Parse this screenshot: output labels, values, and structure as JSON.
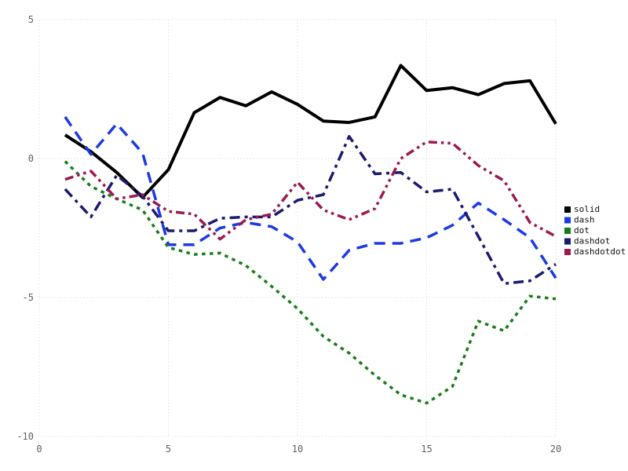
{
  "chart_data": {
    "type": "line",
    "title": "",
    "xlabel": "",
    "ylabel": "",
    "xlim": [
      0,
      20
    ],
    "ylim": [
      -10,
      5
    ],
    "xticks": [
      0,
      5,
      10,
      15,
      20
    ],
    "yticks": [
      5,
      0,
      -5,
      -10
    ],
    "grid": "dotted-lightgray",
    "legend_position": "right-outside-middle",
    "x": [
      1,
      2,
      3,
      4,
      5,
      6,
      7,
      8,
      9,
      10,
      11,
      12,
      13,
      14,
      15,
      16,
      17,
      18,
      19,
      20
    ],
    "series": [
      {
        "name": "solid",
        "color": "#000000",
        "line_style": "solid",
        "values": [
          0.85,
          0.25,
          -0.5,
          -1.4,
          -0.4,
          1.65,
          2.2,
          1.9,
          2.4,
          1.95,
          1.35,
          1.3,
          1.5,
          3.35,
          2.45,
          2.55,
          2.3,
          2.7,
          2.8,
          1.25
        ]
      },
      {
        "name": "dash",
        "color": "#1c39e6",
        "line_style": "dash",
        "values": [
          1.5,
          0.15,
          1.25,
          0.2,
          -3.1,
          -3.1,
          -2.5,
          -2.3,
          -2.45,
          -3.0,
          -4.35,
          -3.3,
          -3.05,
          -3.05,
          -2.85,
          -2.4,
          -1.6,
          -2.2,
          -2.85,
          -4.3
        ]
      },
      {
        "name": "dot",
        "color": "#1a7d1a",
        "line_style": "dot",
        "values": [
          -0.1,
          -1.0,
          -1.45,
          -1.85,
          -3.2,
          -3.45,
          -3.4,
          -3.85,
          -4.6,
          -5.4,
          -6.4,
          -7.0,
          -7.8,
          -8.5,
          -8.8,
          -8.2,
          -5.85,
          -6.2,
          -4.95,
          -5.05
        ]
      },
      {
        "name": "dashdot",
        "color": "#1b1b6e",
        "line_style": "dashdot",
        "values": [
          -1.1,
          -2.1,
          -0.6,
          -1.35,
          -2.6,
          -2.6,
          -2.15,
          -2.1,
          -2.1,
          -1.5,
          -1.3,
          0.8,
          -0.55,
          -0.5,
          -1.2,
          -1.1,
          -2.8,
          -4.5,
          -4.4,
          -3.8
        ]
      },
      {
        "name": "dashdotdot",
        "color": "#9c1a52",
        "line_style": "dashdotdot",
        "values": [
          -0.75,
          -0.45,
          -1.45,
          -1.3,
          -1.9,
          -2.0,
          -2.9,
          -2.2,
          -2.0,
          -0.85,
          -1.85,
          -2.2,
          -1.8,
          0.0,
          0.6,
          0.55,
          -0.25,
          -0.8,
          -2.3,
          -2.8
        ]
      }
    ],
    "legend_entries": [
      "solid",
      "dash",
      "dot",
      "dashdot",
      "dashdotdot"
    ]
  },
  "colors": {
    "background": "#ffffff",
    "grid": "#e0e0e0",
    "tick_label": "#5f5f5f",
    "legend_text": "#111111"
  }
}
